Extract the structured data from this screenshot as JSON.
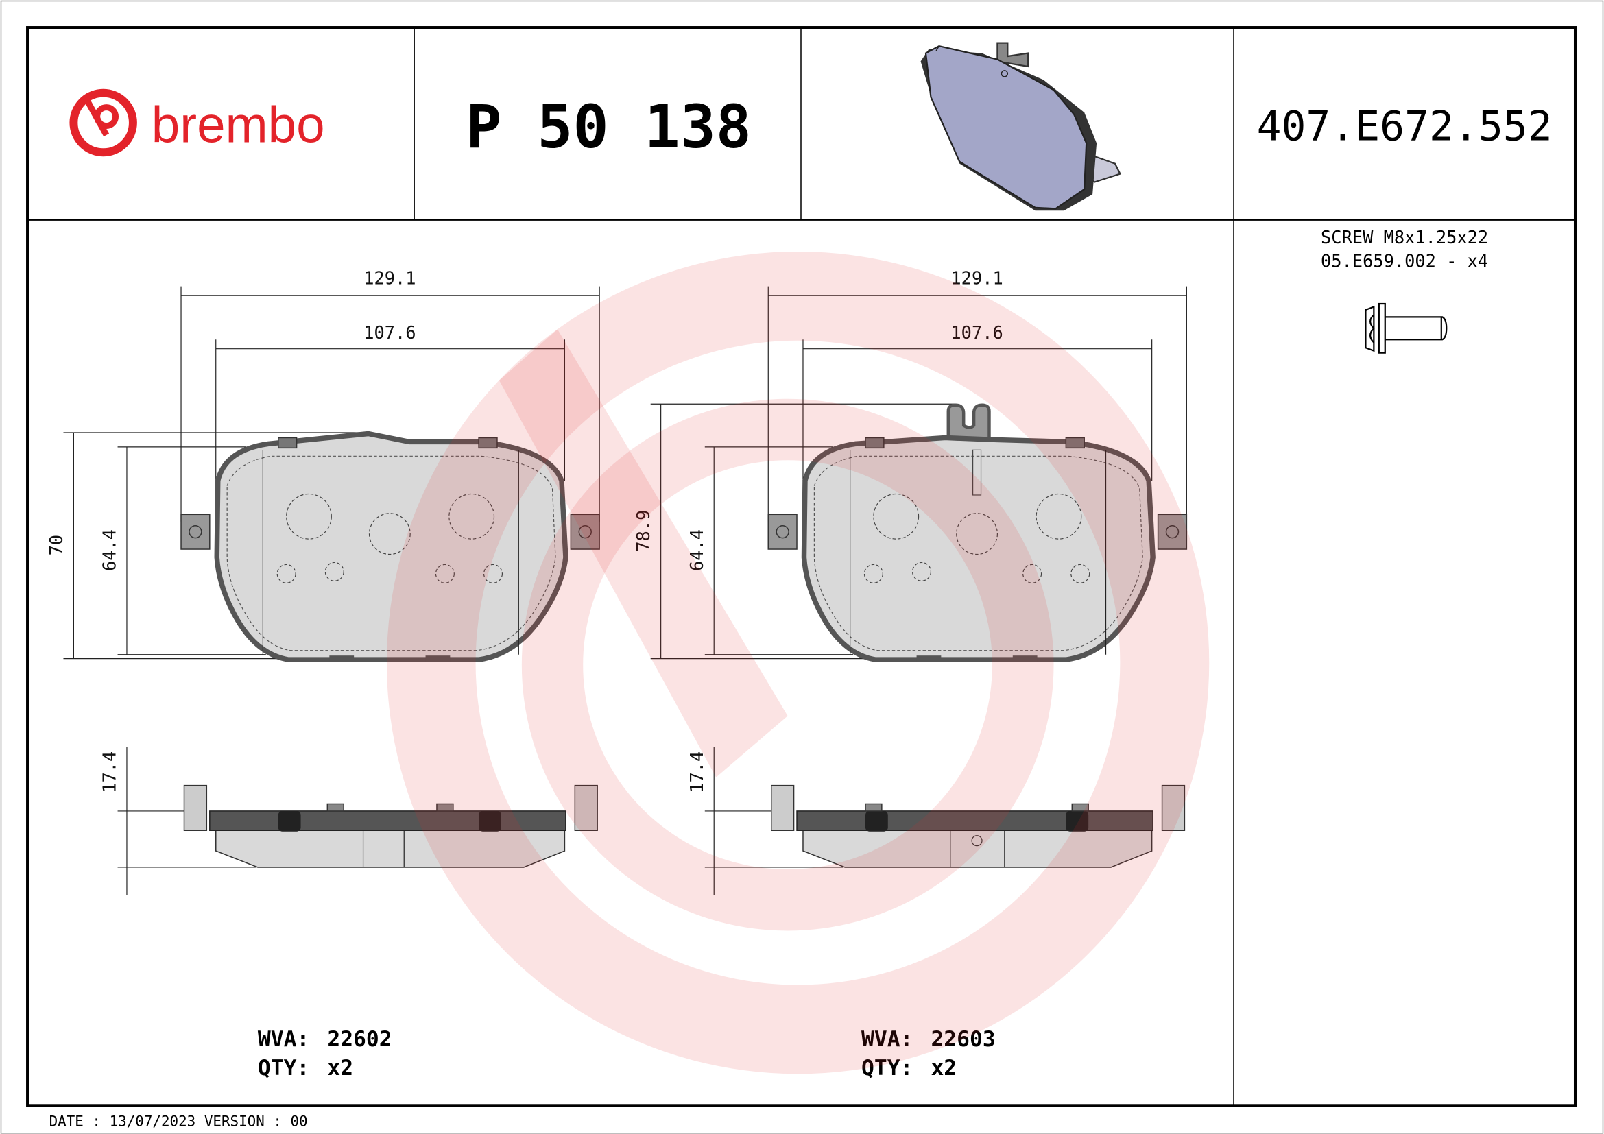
{
  "header": {
    "brand": "brembo",
    "part_number": "P 50 138",
    "reference_code": "407.E672.552"
  },
  "accessory": {
    "description": "SCREW M8x1.25x22",
    "code_qty": "05.E659.002 - x4",
    "icon": "screw-icon"
  },
  "pads": [
    {
      "width_outer": "129.1",
      "width_inner": "107.6",
      "height_total": "70",
      "height_pad": "64.4",
      "thickness": "17.4",
      "wva_label": "WVA:",
      "wva": "22602",
      "qty_label": "QTY:",
      "qty": "x2"
    },
    {
      "width_outer": "129.1",
      "width_inner": "107.6",
      "height_total": "78.9",
      "height_pad": "64.4",
      "thickness": "17.4",
      "wva_label": "WVA:",
      "wva": "22603",
      "qty_label": "QTY:",
      "qty": "x2"
    }
  ],
  "footer": {
    "date_version": "DATE : 13/07/2023 VERSION : 00"
  },
  "colors": {
    "brand_red": "#e3232a",
    "watermark": "#f2b7bd",
    "pad_fill": "#d9d9d9",
    "backing_plate": "#555555",
    "preview_pad": "#a3a6c8"
  }
}
